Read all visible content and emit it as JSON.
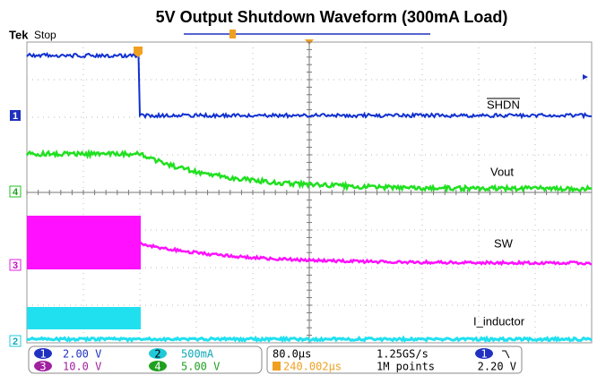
{
  "header": {
    "title": "5V Output Shutdown Waveform (300mA Load)",
    "brand": "Tek",
    "status": "Stop"
  },
  "traces": [
    {
      "label": "SHDN",
      "channel": "1"
    },
    {
      "label": "Vout",
      "channel": "4"
    },
    {
      "label": "SW",
      "channel": "3"
    },
    {
      "label": "I_inductor",
      "channel": "2"
    }
  ],
  "readout": {
    "channels": [
      {
        "channel": "1",
        "scale": "2.00 V"
      },
      {
        "channel": "3",
        "scale": "10.0 V"
      },
      {
        "channel": "2",
        "scale": "500mA"
      },
      {
        "channel": "4",
        "scale": "5.00 V"
      }
    ],
    "timebase": "80.0µs",
    "trigger_position": "240.002µs",
    "sample_rate": "1.25GS/s",
    "record_length": "1M points",
    "trigger_channel": "1",
    "trigger_level": "2.20 V"
  }
}
